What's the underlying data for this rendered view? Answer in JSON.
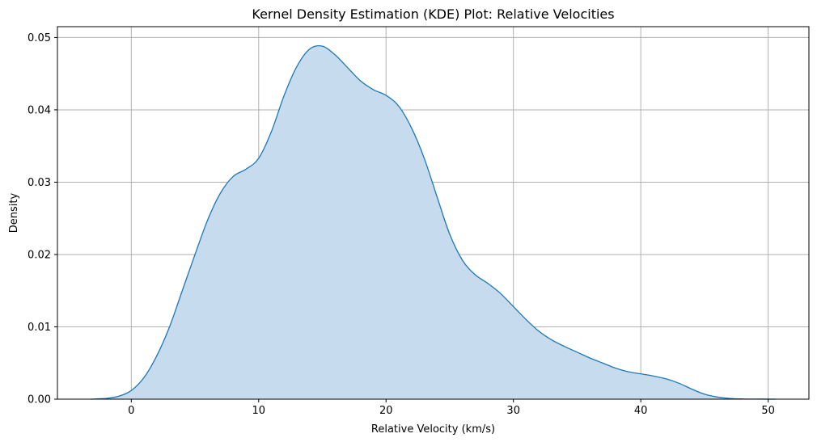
{
  "chart_data": {
    "type": "area",
    "title": "Kernel Density Estimation (KDE) Plot: Relative Velocities",
    "xlabel": "Relative Velocity (km/s)",
    "ylabel": "Density",
    "xlim": [
      -5.8,
      53.2
    ],
    "ylim": [
      0,
      0.0515
    ],
    "xticks": [
      0,
      10,
      20,
      30,
      40,
      50
    ],
    "yticks": [
      0.0,
      0.01,
      0.02,
      0.03,
      0.04,
      0.05
    ],
    "xtick_labels": [
      "0",
      "10",
      "20",
      "30",
      "40",
      "50"
    ],
    "ytick_labels": [
      "0.00",
      "0.01",
      "0.02",
      "0.03",
      "0.04",
      "0.05"
    ],
    "grid": true,
    "line_color": "#1f77b4",
    "fill_color": "#c6dbed",
    "series": [
      {
        "x": [
          -3.2,
          -2,
          -1,
          0,
          1,
          2,
          3,
          4,
          5,
          6,
          7,
          8,
          9,
          10,
          11,
          12,
          13,
          14,
          15,
          16,
          17,
          18,
          19,
          20,
          21,
          22,
          23,
          24,
          25,
          26,
          27,
          28,
          29,
          30,
          31,
          32,
          33,
          34,
          35,
          36,
          37,
          38,
          39,
          40,
          41,
          42,
          43,
          44,
          45,
          46,
          47,
          48,
          49,
          50.6
        ],
        "values": [
          0.0,
          0.0001,
          0.0004,
          0.0012,
          0.003,
          0.006,
          0.01,
          0.015,
          0.02,
          0.0248,
          0.0285,
          0.0308,
          0.0318,
          0.0333,
          0.037,
          0.042,
          0.046,
          0.0484,
          0.0488,
          0.0476,
          0.0458,
          0.044,
          0.0428,
          0.042,
          0.0405,
          0.0375,
          0.0333,
          0.028,
          0.0228,
          0.0192,
          0.0172,
          0.016,
          0.0146,
          0.0128,
          0.011,
          0.0094,
          0.0082,
          0.0073,
          0.0065,
          0.0057,
          0.005,
          0.0043,
          0.0038,
          0.0035,
          0.0032,
          0.0028,
          0.0022,
          0.0014,
          0.0007,
          0.0003,
          0.0001,
          3e-05,
          1e-05,
          0.0
        ]
      }
    ]
  }
}
